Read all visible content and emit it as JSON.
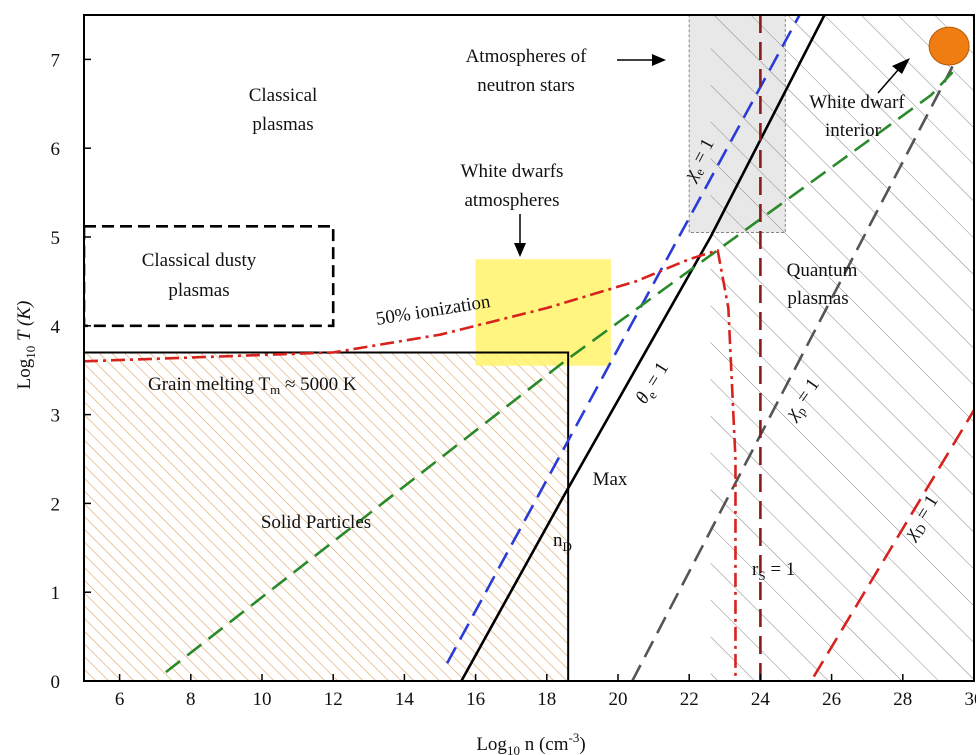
{
  "chart_data": {
    "type": "line",
    "xlabel": "Log",
    "xlabel_sub": "10",
    "xlabel_unit": " n (cm",
    "xlabel_sup": "-3",
    "xlabel_close": ")",
    "ylabel": "Log",
    "ylabel_sub": "10",
    "ylabel_var": " T (K)",
    "xlim": [
      5,
      30
    ],
    "ylim": [
      0,
      7.5
    ],
    "x_ticks": [
      6,
      8,
      10,
      12,
      14,
      16,
      18,
      20,
      22,
      24,
      26,
      28,
      30
    ],
    "y_ticks": [
      0,
      1,
      2,
      3,
      4,
      5,
      6,
      7
    ],
    "grid": false,
    "series": [
      {
        "name": "χe = 1",
        "color": "#2b3bd6",
        "style": "dashed",
        "x": [
          15.2,
          25.1
        ],
        "y": [
          0.2,
          7.5
        ]
      },
      {
        "name": "θe = 1",
        "color": "#000000",
        "style": "solid",
        "x": [
          15.6,
          18.5,
          22.6,
          25.8
        ],
        "y": [
          0,
          2.1,
          5.0,
          7.5
        ]
      },
      {
        "name": "χp = 1",
        "color": "#555555",
        "style": "dashed",
        "x": [
          20.4,
          29.5
        ],
        "y": [
          0,
          7.0
        ]
      },
      {
        "name": "χD = 1",
        "color": "#d7221e",
        "style": "dashed",
        "x": [
          25.5,
          30.0
        ],
        "y": [
          0.05,
          3.05
        ]
      },
      {
        "name": "",
        "color": "#2a8a2a",
        "style": "dashed",
        "x": [
          7.3,
          18.5,
          28.8,
          29.5
        ],
        "y": [
          0.1,
          3.6,
          6.6,
          6.9
        ]
      },
      {
        "name": "rS = 1",
        "color": "#8b1a1a",
        "style": "dashed",
        "x": [
          24.0,
          24.0
        ],
        "y": [
          0,
          7.5
        ]
      },
      {
        "name": "50% ionization",
        "color": "#d7221e",
        "style": "dashdot",
        "x": [
          5.0,
          12.0,
          15.0,
          18.0,
          20.5,
          22.0,
          22.8,
          23.1,
          23.3,
          23.3,
          23.3
        ],
        "y": [
          3.6,
          3.7,
          3.9,
          4.2,
          4.5,
          4.75,
          4.85,
          4.2,
          2.5,
          1.0,
          0
        ]
      }
    ],
    "regions": [
      {
        "name": "Solid Particles",
        "x": [
          5.0,
          18.6
        ],
        "y": [
          0,
          3.7
        ],
        "fill": "hatch-orange"
      },
      {
        "name": "Classical dusty plasmas",
        "x": [
          5.0,
          12.0
        ],
        "y": [
          4.0,
          5.12
        ],
        "fill": "dashed-box"
      },
      {
        "name": "White dwarfs atmospheres",
        "x": [
          16.0,
          19.8
        ],
        "y": [
          3.55,
          4.75
        ],
        "fill": "#fff36a"
      },
      {
        "name": "Atmospheres of neutron stars",
        "x": [
          22.0,
          24.7
        ],
        "y": [
          5.05,
          7.5
        ],
        "fill": "#e8e8e8"
      },
      {
        "name": "Quantum plasmas",
        "x": [
          22.6,
          30.0
        ],
        "y": [
          0,
          7.5
        ],
        "fill": "hatch-gray"
      }
    ],
    "markers": [
      {
        "name": "White dwarf interior",
        "x": 29.3,
        "y": 7.15,
        "color": "#f07d12"
      }
    ]
  },
  "labels": {
    "classical_plasmas_1": "Classical",
    "classical_plasmas_2": "plasmas",
    "dusty_1": "Classical dusty",
    "dusty_2": "plasmas",
    "wd_atm_1": "White dwarfs",
    "wd_atm_2": "atmospheres",
    "ns_1": "Atmospheres of",
    "ns_2": "neutron stars",
    "wd_int_1": "White dwarf",
    "wd_int_2": "interior",
    "quantum_1": "Quantum",
    "quantum_2": "plasmas",
    "ionization": "50% ionization",
    "grain_melting": "Grain melting T",
    "grain_sub": "m",
    "grain_value": " ≈ 5000 K",
    "solid": "Solid Particles",
    "max": "Max",
    "nd": "n",
    "nd_sub": "D",
    "chi_e": "χ",
    "chi_e_sub": "e",
    "chi_e_eq": " = 1",
    "theta_e": "θ",
    "theta_e_sub": "e",
    "theta_e_eq": " = 1",
    "chi_p": "χ",
    "chi_p_sub": "p",
    "chi_p_eq": " = 1",
    "chi_d": "χ",
    "chi_d_sub": "D",
    "chi_d_eq": " = 1",
    "rs": "r",
    "rs_sub": "S",
    "rs_eq": " = 1"
  }
}
